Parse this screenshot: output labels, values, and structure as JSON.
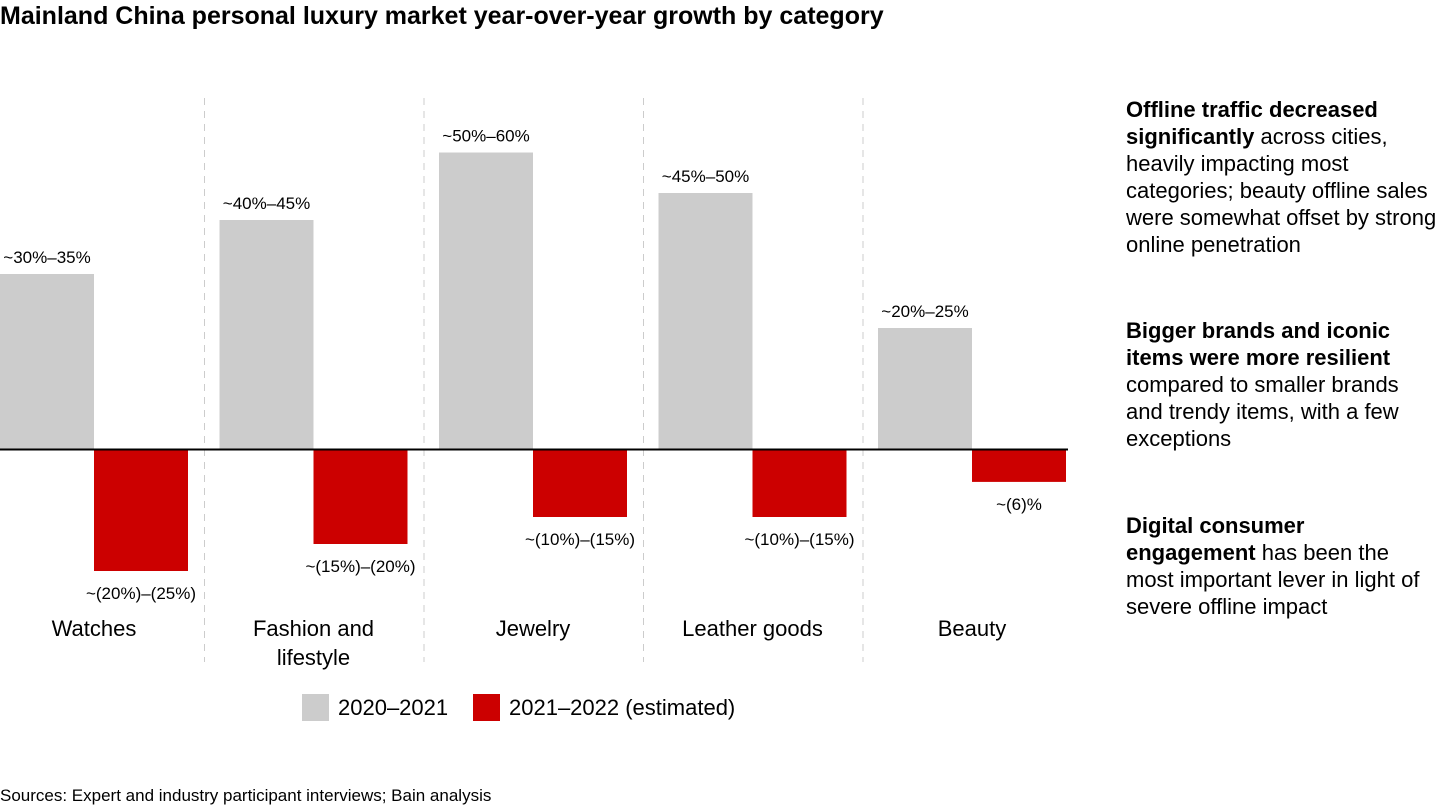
{
  "title": "Mainland China personal luxury market year-over-year growth by category",
  "colors": {
    "series_2020_2021": "#cccccc",
    "series_2021_2022": "#cc0000",
    "axis": "#000000",
    "divider": "#cccccc"
  },
  "chart_data": {
    "type": "bar",
    "categories": [
      "Watches",
      "Fashion and lifestyle",
      "Jewelry",
      "Leather goods",
      "Beauty"
    ],
    "category_label_lines": [
      [
        "Watches"
      ],
      [
        "Fashion and",
        "lifestyle"
      ],
      [
        "Jewelry"
      ],
      [
        "Leather goods"
      ],
      [
        "Beauty"
      ]
    ],
    "series": [
      {
        "name": "2020–2021",
        "values": [
          32.5,
          42.5,
          55,
          47.5,
          22.5
        ],
        "labels": [
          "~30%–35%",
          "~40%–45%",
          "~50%–60%",
          "~45%–50%",
          "~20%–25%"
        ]
      },
      {
        "name": "2021–2022 (estimated)",
        "values": [
          -22.5,
          -17.5,
          -12.5,
          -12.5,
          -6
        ],
        "labels": [
          "~(20%)–(25%)",
          "~(15%)–(20%)",
          "~(10%)–(15%)",
          "~(10%)–(15%)",
          "~(6)%"
        ]
      }
    ],
    "ylim": [
      -25,
      60
    ],
    "grid": false,
    "legend": "bottom-center"
  },
  "notes": [
    {
      "bold": "Offline traffic decreased significantly",
      "text": " across cities, heavily impacting most categories; beauty offline sales were somewhat offset by strong online penetration"
    },
    {
      "bold": "Bigger brands and iconic items were more resilient",
      "text": " compared to smaller brands and trendy items, with a few exceptions"
    },
    {
      "bold": "Digital consumer engagement",
      "text": " has been the most important lever in light of severe offline impact"
    }
  ],
  "source": "Sources: Expert and industry participant interviews; Bain analysis"
}
